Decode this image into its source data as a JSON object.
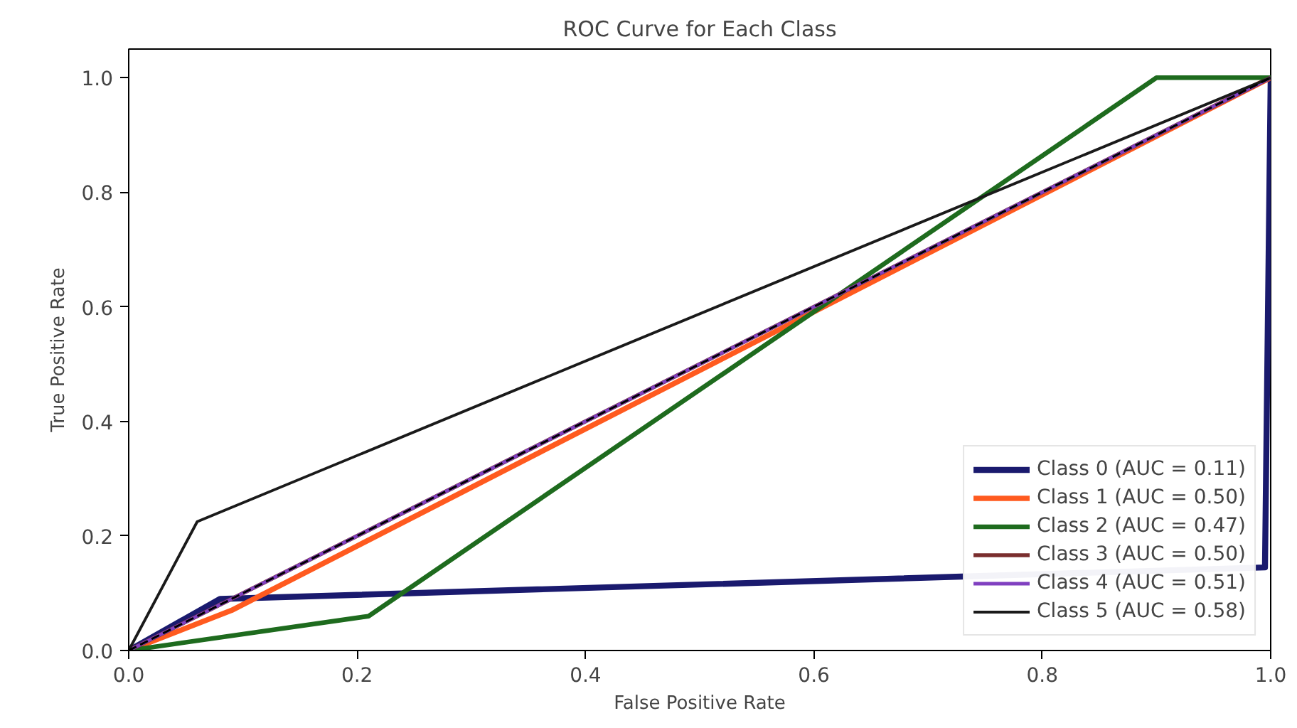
{
  "chart_data": {
    "type": "line",
    "title": "ROC Curve for Each Class",
    "xlabel": "False Positive Rate",
    "ylabel": "True Positive Rate",
    "xlim": [
      0,
      1
    ],
    "ylim": [
      0,
      1.05
    ],
    "xticks": [
      {
        "value": 0,
        "label": "0.0"
      },
      {
        "value": 0.2,
        "label": "0.2"
      },
      {
        "value": 0.4,
        "label": "0.4"
      },
      {
        "value": 0.6,
        "label": "0.6"
      },
      {
        "value": 0.8,
        "label": "0.8"
      },
      {
        "value": 1,
        "label": "1.0"
      }
    ],
    "yticks": [
      {
        "value": 0,
        "label": "0.0"
      },
      {
        "value": 0.2,
        "label": "0.2"
      },
      {
        "value": 0.4,
        "label": "0.4"
      },
      {
        "value": 0.6,
        "label": "0.6"
      },
      {
        "value": 0.8,
        "label": "0.8"
      },
      {
        "value": 1,
        "label": "1.0"
      }
    ],
    "grid": false,
    "legend": "bottom right",
    "line_style": "solid",
    "series": [
      {
        "name": "Class 0 (AUC = 0.11)",
        "color": "#1a1a6e",
        "x": [
          0,
          0.08,
          0.995,
          1
        ],
        "values": [
          0,
          0.09,
          0.145,
          1
        ]
      },
      {
        "name": "Class 1 (AUC = 0.50)",
        "color": "#ff5a1f",
        "x": [
          0,
          0.09,
          1
        ],
        "values": [
          0,
          0.07,
          1
        ]
      },
      {
        "name": "Class 2 (AUC = 0.47)",
        "color": "#1e6b1e",
        "x": [
          0,
          0.21,
          0.9,
          1
        ],
        "values": [
          0,
          0.06,
          1,
          1
        ]
      },
      {
        "name": "Class 3 (AUC = 0.50)",
        "color": "#7a2e2e",
        "x": [
          0,
          1
        ],
        "values": [
          0,
          1
        ]
      },
      {
        "name": "Class 4 (AUC = 0.51)",
        "color": "#8040c0",
        "x": [
          0,
          1
        ],
        "values": [
          0,
          1
        ]
      },
      {
        "name": "Class 5 (AUC = 0.58)",
        "color": "#1a1a1a",
        "x": [
          0,
          0.06,
          1
        ],
        "values": [
          0,
          0.225,
          1
        ]
      },
      {
        "color": "#000000",
        "x": [
          0,
          1
        ],
        "values": [
          0,
          1
        ],
        "line_style": "dashed"
      }
    ]
  }
}
